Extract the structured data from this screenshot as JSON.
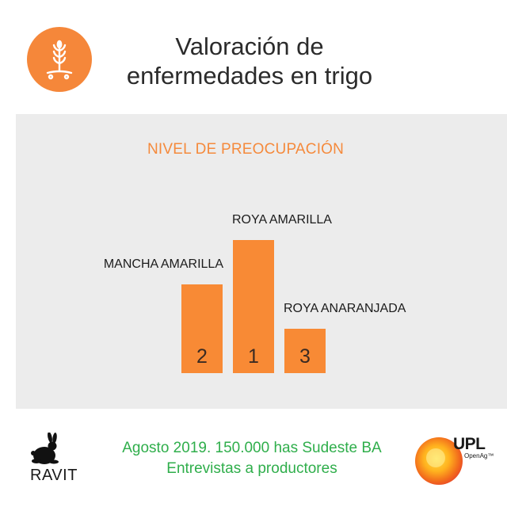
{
  "header": {
    "title_line1": "Valoración de",
    "title_line2": "enfermedades en trigo",
    "icon": "wheat-icon",
    "icon_color": "#f5873a"
  },
  "chart_data": {
    "type": "bar",
    "title": "NIVEL DE PREOCUPACIÓN",
    "categories": [
      "MANCHA AMARILLA",
      "ROYA AMARILLA",
      "ROYA ANARANJADA"
    ],
    "values": [
      2,
      3,
      1
    ],
    "rank_labels": [
      "2",
      "1",
      "3"
    ],
    "bar_color": "#f88a35",
    "ylim": [
      0,
      3
    ],
    "grid": false
  },
  "footer": {
    "left_logo_text": "RAVIT",
    "left_logo_icon": "rabbit-icon",
    "line1": "Agosto 2019. 150.000 has Sudeste BA",
    "line2": "Entrevistas a productores",
    "right_logo_text": "UPL",
    "right_logo_subtext": "OpenAg™",
    "right_logo_icon": "upl-logo-icon"
  }
}
